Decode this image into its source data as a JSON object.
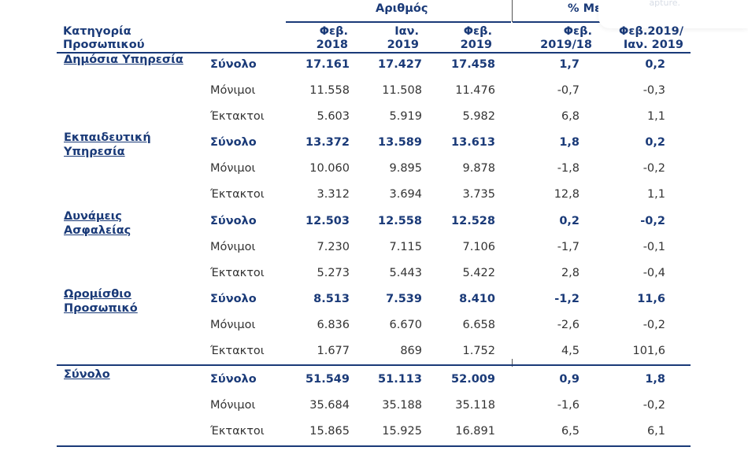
{
  "header": {
    "group_count": "Αριθμός",
    "group_change": "% Μεταβολή",
    "category_label": "Κατηγορία\nΠροσωπικού",
    "col1": "Φεβ.\n2018",
    "col2": "Ιαν.\n2019",
    "col3": "Φεβ.\n2019",
    "col4": "Φεβ.\n2019/18",
    "col5": "Φεβ.2019/\nΙαν. 2019"
  },
  "overlay_text": "apture.",
  "groups": [
    {
      "category": "Δημόσια Υπηρεσία",
      "rows": [
        {
          "label": "Σύνολο",
          "v1": "17.161",
          "v2": "17.427",
          "v3": "17.458",
          "p1": "1,7",
          "p2": "0,2"
        },
        {
          "label": "Μόνιμοι",
          "v1": "11.558",
          "v2": "11.508",
          "v3": "11.476",
          "p1": "-0,7",
          "p2": "-0,3"
        },
        {
          "label": "Έκτακτοι",
          "v1": "5.603",
          "v2": "5.919",
          "v3": "5.982",
          "p1": "6,8",
          "p2": "1,1"
        }
      ]
    },
    {
      "category": "Εκπαιδευτική\nΥπηρεσία",
      "rows": [
        {
          "label": "Σύνολο",
          "v1": "13.372",
          "v2": "13.589",
          "v3": "13.613",
          "p1": "1,8",
          "p2": "0,2"
        },
        {
          "label": "Μόνιμοι",
          "v1": "10.060",
          "v2": "9.895",
          "v3": "9.878",
          "p1": "-1,8",
          "p2": "-0,2"
        },
        {
          "label": "Έκτακτοι",
          "v1": "3.312",
          "v2": "3.694",
          "v3": "3.735",
          "p1": "12,8",
          "p2": "1,1"
        }
      ]
    },
    {
      "category": "Δυνάμεις\nΑσφαλείας",
      "rows": [
        {
          "label": "Σύνολο",
          "v1": "12.503",
          "v2": "12.558",
          "v3": "12.528",
          "p1": "0,2",
          "p2": "-0,2"
        },
        {
          "label": "Μόνιμοι",
          "v1": "7.230",
          "v2": "7.115",
          "v3": "7.106",
          "p1": "-1,7",
          "p2": "-0,1"
        },
        {
          "label": "Έκτακτοι",
          "v1": "5.273",
          "v2": "5.443",
          "v3": "5.422",
          "p1": "2,8",
          "p2": "-0,4"
        }
      ]
    },
    {
      "category": "Ωρομίσθιο\nΠροσωπικό",
      "rows": [
        {
          "label": "Σύνολο",
          "v1": "8.513",
          "v2": "7.539",
          "v3": "8.410",
          "p1": "-1,2",
          "p2": "11,6"
        },
        {
          "label": "Μόνιμοι",
          "v1": "6.836",
          "v2": "6.670",
          "v3": "6.658",
          "p1": "-2,6",
          "p2": "-0,2"
        },
        {
          "label": "Έκτακτοι",
          "v1": "1.677",
          "v2": "869",
          "v3": "1.752",
          "p1": "4,5",
          "p2": "101,6"
        }
      ]
    },
    {
      "category": "Σύνολο",
      "rows": [
        {
          "label": "Σύνολο",
          "v1": "51.549",
          "v2": "51.113",
          "v3": "52.009",
          "p1": "0,9",
          "p2": "1,8"
        },
        {
          "label": "Μόνιμοι",
          "v1": "35.684",
          "v2": "35.188",
          "v3": "35.118",
          "p1": "-1,6",
          "p2": "-0,2"
        },
        {
          "label": "Έκτακτοι",
          "v1": "15.865",
          "v2": "15.925",
          "v3": "16.891",
          "p1": "6,5",
          "p2": "6,1"
        }
      ]
    }
  ]
}
